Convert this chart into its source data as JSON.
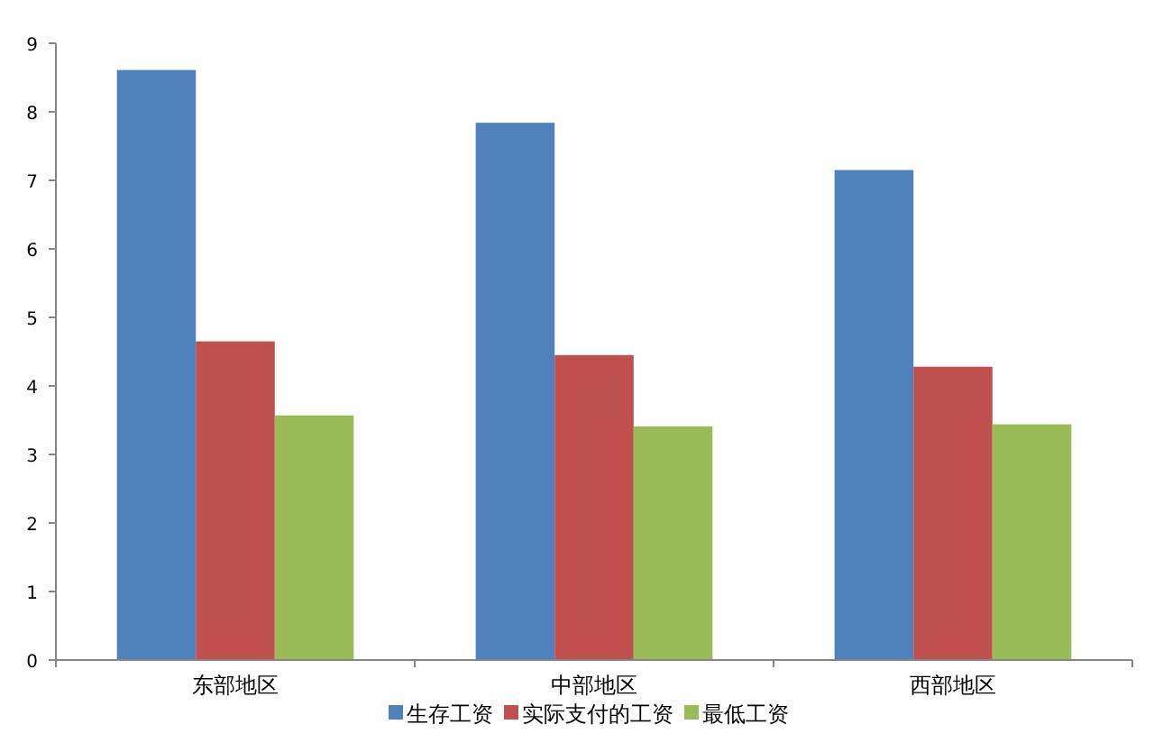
{
  "chart_data": {
    "type": "bar",
    "categories": [
      "东部地区",
      "中部地区",
      "西部地区"
    ],
    "series": [
      {
        "name": "生存工资",
        "color": "#4f81bd",
        "values": [
          8.61,
          7.84,
          7.15
        ]
      },
      {
        "name": "实际支付的工资",
        "color": "#c0504d",
        "values": [
          4.65,
          4.45,
          4.28
        ]
      },
      {
        "name": "最低工资",
        "color": "#9bbb59",
        "values": [
          3.57,
          3.41,
          3.44
        ]
      }
    ],
    "ylim": [
      0,
      9
    ],
    "yticks": [
      0,
      1,
      2,
      3,
      4,
      5,
      6,
      7,
      8,
      9
    ],
    "grid": false,
    "legend": "bottom"
  }
}
